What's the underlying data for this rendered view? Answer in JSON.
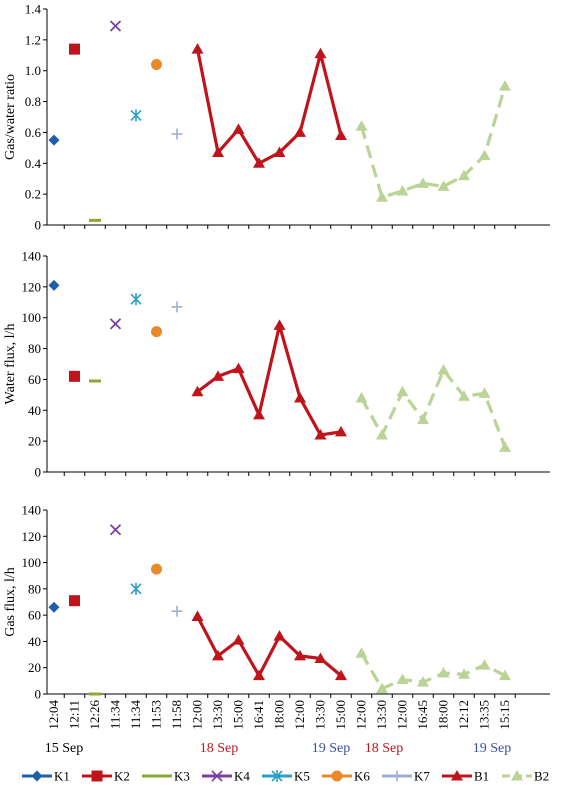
{
  "chart_data": {
    "type": "line",
    "categories": [
      "12:04",
      "12:11",
      "12:26",
      "11:34",
      "11:34",
      "11:53",
      "11:58",
      "12:00",
      "13:30",
      "15:00",
      "16:41",
      "18:00",
      "12:00",
      "13:30",
      "15:00",
      "12:00",
      "13:30",
      "12:00",
      "16:45",
      "18:00",
      "12:12",
      "13:35",
      "15:15"
    ],
    "date_groups": [
      {
        "label": "15 Sep",
        "color": "#000000"
      },
      {
        "label": "18 Sep",
        "color": "#c0141c"
      },
      {
        "label": "19 Sep",
        "color": "#3550a0"
      },
      {
        "label": "18 Sep",
        "color": "#c0141c"
      },
      {
        "label": "19 Sep",
        "color": "#3550a0"
      }
    ],
    "legend": [
      {
        "name": "K1",
        "color": "#1f5fa8",
        "marker": "diamond"
      },
      {
        "name": "K2",
        "color": "#c0141c",
        "marker": "square"
      },
      {
        "name": "K3",
        "color": "#8aa832",
        "marker": "dash"
      },
      {
        "name": "K4",
        "color": "#7b3f9e",
        "marker": "x"
      },
      {
        "name": "K5",
        "color": "#2aa1c4",
        "marker": "star"
      },
      {
        "name": "K6",
        "color": "#e8892b",
        "marker": "circle"
      },
      {
        "name": "K7",
        "color": "#9ab0d4",
        "marker": "plus"
      },
      {
        "name": "B1",
        "color": "#c0141c",
        "marker": "triangle"
      },
      {
        "name": "B2",
        "color": "#bcd397",
        "marker": "triangle"
      }
    ],
    "panels": [
      {
        "ylabel": "Gas/water ratio",
        "ylim": [
          0,
          1.4
        ],
        "yticks": [
          "0",
          "0.2",
          "0.4",
          "0.6",
          "0.8",
          "1.0",
          "1.2",
          "1.4"
        ],
        "points": [
          {
            "series": "K1",
            "x": 0,
            "y": 0.55
          },
          {
            "series": "K2",
            "x": 1,
            "y": 1.14
          },
          {
            "series": "K3",
            "x": 2,
            "y": 0.03
          },
          {
            "series": "K4",
            "x": 3,
            "y": 1.29
          },
          {
            "series": "K5",
            "x": 4,
            "y": 0.71
          },
          {
            "series": "K6",
            "x": 5,
            "y": 1.04
          },
          {
            "series": "K7",
            "x": 6,
            "y": 0.59
          }
        ],
        "lines": [
          {
            "series": "B1",
            "x_start": 7,
            "values": [
              1.14,
              0.47,
              0.62,
              0.4,
              0.47,
              0.6,
              1.11,
              0.58
            ]
          },
          {
            "series": "B2",
            "x_start": 15,
            "values": [
              0.64,
              0.18,
              0.22,
              0.27,
              0.25,
              0.32,
              0.45,
              0.9
            ]
          }
        ]
      },
      {
        "ylabel": "Water flux, l/h",
        "ylim": [
          0,
          140
        ],
        "yticks": [
          "0",
          "20",
          "40",
          "60",
          "80",
          "100",
          "120",
          "140"
        ],
        "points": [
          {
            "series": "K1",
            "x": 0,
            "y": 121
          },
          {
            "series": "K2",
            "x": 1,
            "y": 62
          },
          {
            "series": "K3",
            "x": 2,
            "y": 59
          },
          {
            "series": "K4",
            "x": 3,
            "y": 96
          },
          {
            "series": "K5",
            "x": 4,
            "y": 112
          },
          {
            "series": "K6",
            "x": 5,
            "y": 91
          },
          {
            "series": "K7",
            "x": 6,
            "y": 107
          }
        ],
        "lines": [
          {
            "series": "B1",
            "x_start": 7,
            "values": [
              52,
              62,
              67,
              37,
              95,
              48,
              24,
              26
            ]
          },
          {
            "series": "B2",
            "x_start": 15,
            "values": [
              48,
              24,
              52,
              34,
              66,
              49,
              51,
              16
            ]
          }
        ]
      },
      {
        "ylabel": "Gas flux, l/h",
        "ylim": [
          0,
          140
        ],
        "yticks": [
          "0",
          "20",
          "40",
          "60",
          "80",
          "100",
          "120",
          "140"
        ],
        "points": [
          {
            "series": "K1",
            "x": 0,
            "y": 66
          },
          {
            "series": "K2",
            "x": 1,
            "y": 71
          },
          {
            "series": "K3",
            "x": 2,
            "y": 0
          },
          {
            "series": "K4",
            "x": 3,
            "y": 125
          },
          {
            "series": "K5",
            "x": 4,
            "y": 80
          },
          {
            "series": "K6",
            "x": 5,
            "y": 95
          },
          {
            "series": "K7",
            "x": 6,
            "y": 63
          }
        ],
        "lines": [
          {
            "series": "B1",
            "x_start": 7,
            "values": [
              59,
              29,
              41,
              14,
              44,
              29,
              27,
              14
            ]
          },
          {
            "series": "B2",
            "x_start": 15,
            "values": [
              31,
              4,
              11,
              9,
              16,
              15,
              22,
              14
            ]
          }
        ]
      }
    ]
  }
}
